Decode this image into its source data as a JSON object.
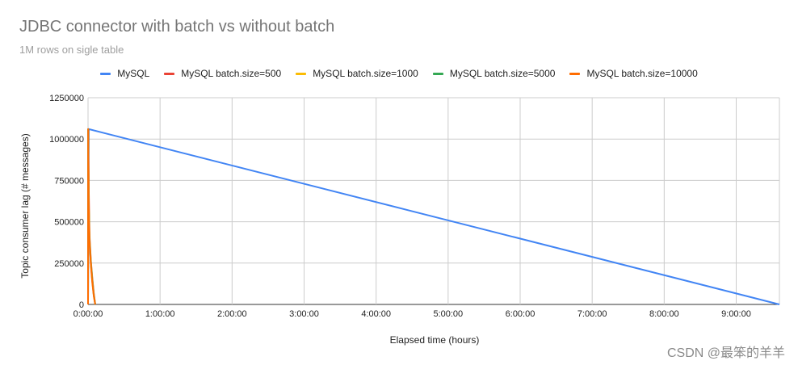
{
  "chart_data": {
    "type": "line",
    "title": "JDBC connector with batch vs without batch",
    "subtitle": "1M rows on sigle table",
    "xlabel": "Elapsed time (hours)",
    "ylabel": "Topic consumer lag (# messages)",
    "x_unit": "hours",
    "xlim": [
      0,
      9.6
    ],
    "ylim": [
      0,
      1250000
    ],
    "x_ticks": [
      0,
      1,
      2,
      3,
      4,
      5,
      6,
      7,
      8,
      9
    ],
    "x_tick_labels": [
      "0:00:00",
      "1:00:00",
      "2:00:00",
      "3:00:00",
      "4:00:00",
      "5:00:00",
      "6:00:00",
      "7:00:00",
      "8:00:00",
      "9:00:00"
    ],
    "y_ticks": [
      0,
      250000,
      500000,
      750000,
      1000000,
      1250000
    ],
    "y_tick_labels": [
      "0",
      "250000",
      "500000",
      "750000",
      "1000000",
      "1250000"
    ],
    "grid": true,
    "legend_position": "top",
    "series": [
      {
        "name": "MySQL",
        "color": "#4285f4",
        "x": [
          0,
          0.01,
          9.6
        ],
        "y": [
          0,
          1060000,
          0
        ]
      },
      {
        "name": "MySQL batch.size=500",
        "color": "#ea4335",
        "x": [
          0,
          0.002,
          0.01,
          0.02,
          0.04,
          0.06,
          0.08,
          0.1
        ],
        "y": [
          0,
          1060000,
          700000,
          420000,
          260000,
          160000,
          70000,
          0
        ]
      },
      {
        "name": "MySQL batch.size=1000",
        "color": "#fbbc04",
        "x": [
          0,
          0.002,
          0.01,
          0.02,
          0.04,
          0.06,
          0.08,
          0.1
        ],
        "y": [
          0,
          1060000,
          620000,
          400000,
          250000,
          150000,
          60000,
          0
        ]
      },
      {
        "name": "MySQL batch.size=5000",
        "color": "#34a853",
        "x": [
          0,
          0.002,
          0.01,
          0.02,
          0.04,
          0.06,
          0.08,
          0.1
        ],
        "y": [
          0,
          1060000,
          600000,
          390000,
          240000,
          140000,
          55000,
          0
        ]
      },
      {
        "name": "MySQL batch.size=10000",
        "color": "#ff6d01",
        "x": [
          0,
          0.002,
          0.01,
          0.02,
          0.04,
          0.06,
          0.08,
          0.1
        ],
        "y": [
          0,
          1060000,
          580000,
          380000,
          230000,
          130000,
          50000,
          0
        ]
      }
    ]
  },
  "watermark": "CSDN @最笨的羊羊"
}
